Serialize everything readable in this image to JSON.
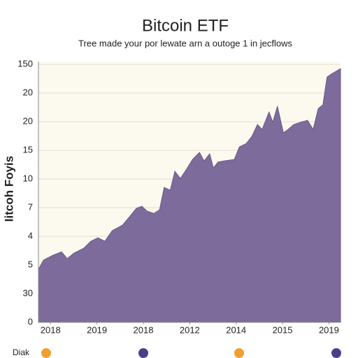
{
  "chart_data": {
    "type": "area",
    "title": "Bitcoin ETF",
    "subtitle": "Tree made your por lewate arn a outoge 1 in jecflows",
    "y_label": "Iitcoh Foyis",
    "legend_label": "Diak",
    "color": "#7d6b9c",
    "grid": true,
    "xlim": [
      -0.26,
      6.25
    ],
    "ylim": [
      0,
      9.1
    ],
    "xticks": [
      {
        "value": 0,
        "label": "2018"
      },
      {
        "value": 1,
        "label": "2019"
      },
      {
        "value": 2,
        "label": "2018"
      },
      {
        "value": 3,
        "label": "2012"
      },
      {
        "value": 4,
        "label": "2014"
      },
      {
        "value": 5,
        "label": "2015"
      },
      {
        "value": 6,
        "label": "2019"
      }
    ],
    "yticks": [
      0,
      {
        "value": 1,
        "label": "30"
      },
      {
        "value": 2,
        "label": "5"
      },
      {
        "value": 3,
        "label": "4"
      },
      {
        "value": 4,
        "label": "7"
      },
      {
        "value": 5,
        "label": "10"
      },
      {
        "value": 6,
        "label": "15"
      },
      {
        "value": 7,
        "label": "20"
      },
      {
        "value": 8,
        "label": "20"
      },
      {
        "value": 9,
        "label": "150"
      }
    ],
    "x": [
      -0.26,
      -0.15,
      0.05,
      0.24,
      0.36,
      0.5,
      0.72,
      0.87,
      1.02,
      1.17,
      1.33,
      1.55,
      1.7,
      1.85,
      1.97,
      2.08,
      2.23,
      2.35,
      2.45,
      2.58,
      2.68,
      2.8,
      2.95,
      3.06,
      3.21,
      3.31,
      3.43,
      3.51,
      3.61,
      3.73,
      3.96,
      4.07,
      4.22,
      4.34,
      4.46,
      4.56,
      4.71,
      4.79,
      4.89,
      5.02,
      5.12,
      5.24,
      5.39,
      5.54,
      5.66,
      5.77,
      5.87,
      5.96,
      6.07,
      6.25
    ],
    "values": [
      1.85,
      2.17,
      2.34,
      2.46,
      2.22,
      2.41,
      2.59,
      2.83,
      2.95,
      2.83,
      3.2,
      3.39,
      3.68,
      3.98,
      4.05,
      3.88,
      3.8,
      3.93,
      4.71,
      4.61,
      5.27,
      5.02,
      5.39,
      5.68,
      5.93,
      5.63,
      5.88,
      5.39,
      5.59,
      5.63,
      5.68,
      6.12,
      6.24,
      6.49,
      6.9,
      6.73,
      7.34,
      6.98,
      7.54,
      6.61,
      6.73,
      6.9,
      6.98,
      7.05,
      6.73,
      7.46,
      7.59,
      8.56,
      8.68,
      8.85
    ]
  }
}
